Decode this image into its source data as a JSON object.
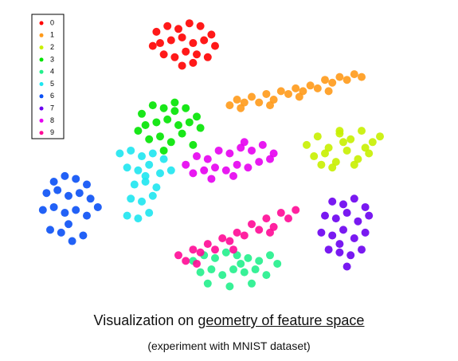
{
  "chart_data": {
    "type": "scatter",
    "title": [
      "Visualization on",
      "geometry of feature space"
    ],
    "subtitle": "(experiment with MNIST dataset)",
    "xlim": [
      0,
      100
    ],
    "ylim": [
      0,
      100
    ],
    "legend": "top-left",
    "series": [
      {
        "name": "0",
        "color": "#ff0000",
        "x": [
          34,
          37,
          40,
          43,
          46,
          49,
          35,
          38,
          41,
          44,
          47,
          50,
          36,
          39,
          42,
          45,
          48,
          33,
          41,
          44
        ],
        "y": [
          93,
          95,
          94,
          96,
          95,
          92,
          89,
          90,
          91,
          89,
          90,
          88,
          85,
          84,
          86,
          85,
          84,
          88,
          81,
          82
        ]
      },
      {
        "name": "1",
        "color": "#ff9a1a",
        "x": [
          54,
          56,
          58,
          60,
          62,
          64,
          66,
          68,
          70,
          72,
          74,
          76,
          78,
          80,
          82,
          84,
          86,
          88,
          90,
          57,
          65,
          73,
          81
        ],
        "y": [
          67,
          69,
          68,
          70,
          68,
          71,
          69,
          72,
          71,
          73,
          72,
          74,
          73,
          76,
          75,
          77,
          76,
          78,
          77,
          66,
          67,
          70,
          72
        ]
      },
      {
        "name": "2",
        "color": "#c8f000",
        "x": [
          75,
          78,
          81,
          84,
          87,
          90,
          93,
          95,
          77,
          80,
          83,
          86,
          89,
          92,
          79,
          82,
          85,
          88,
          91,
          84
        ],
        "y": [
          53,
          56,
          52,
          57,
          55,
          58,
          54,
          56,
          49,
          50,
          47,
          51,
          48,
          50,
          46,
          45,
          54,
          46,
          52,
          58
        ]
      },
      {
        "name": "3",
        "color": "#00e400",
        "x": [
          30,
          33,
          36,
          39,
          42,
          45,
          31,
          34,
          37,
          40,
          43,
          46,
          32,
          35,
          38,
          41,
          44,
          29,
          36,
          39
        ],
        "y": [
          64,
          67,
          66,
          68,
          66,
          63,
          60,
          61,
          62,
          60,
          61,
          59,
          55,
          56,
          54,
          57,
          53,
          58,
          51,
          65
        ]
      },
      {
        "name": "4",
        "color": "#22f08c",
        "x": [
          44,
          47,
          50,
          53,
          56,
          59,
          62,
          65,
          67,
          46,
          49,
          52,
          55,
          58,
          61,
          64,
          48,
          54,
          60,
          57
        ],
        "y": [
          12,
          14,
          13,
          15,
          14,
          13,
          12,
          14,
          11,
          8,
          9,
          7,
          9,
          8,
          9,
          7,
          4,
          3,
          4,
          11
        ]
      },
      {
        "name": "5",
        "color": "#1ee6f0",
        "x": [
          24,
          27,
          30,
          33,
          36,
          26,
          29,
          32,
          35,
          38,
          28,
          31,
          34,
          27,
          30,
          33,
          26,
          29,
          32,
          31
        ],
        "y": [
          50,
          51,
          49,
          50,
          48,
          45,
          44,
          46,
          43,
          44,
          39,
          40,
          38,
          34,
          33,
          35,
          28,
          27,
          29,
          42
        ]
      },
      {
        "name": "6",
        "color": "#0a50f5",
        "x": [
          6,
          9,
          12,
          15,
          4,
          7,
          10,
          13,
          16,
          3,
          6,
          9,
          12,
          15,
          18,
          5,
          8,
          11,
          14,
          10
        ],
        "y": [
          40,
          42,
          41,
          39,
          36,
          37,
          35,
          36,
          34,
          30,
          31,
          29,
          30,
          28,
          31,
          23,
          22,
          19,
          21,
          25
        ]
      },
      {
        "name": "7",
        "color": "#6a00f0",
        "x": [
          82,
          85,
          88,
          91,
          80,
          83,
          86,
          89,
          92,
          79,
          82,
          85,
          88,
          91,
          81,
          84,
          87,
          90,
          86,
          84
        ],
        "y": [
          33,
          32,
          34,
          31,
          28,
          27,
          29,
          26,
          28,
          22,
          21,
          23,
          20,
          22,
          16,
          15,
          14,
          16,
          10,
          18
        ]
      },
      {
        "name": "8",
        "color": "#e600f0",
        "x": [
          42,
          45,
          48,
          51,
          54,
          57,
          60,
          63,
          66,
          44,
          47,
          50,
          53,
          56,
          59,
          62,
          65,
          49,
          55,
          58
        ],
        "y": [
          46,
          49,
          48,
          51,
          50,
          52,
          51,
          53,
          50,
          43,
          44,
          45,
          44,
          46,
          45,
          47,
          48,
          41,
          42,
          54
        ]
      },
      {
        "name": "9",
        "color": "#ff0a96",
        "x": [
          40,
          42,
          44,
          46,
          48,
          50,
          52,
          54,
          56,
          58,
          60,
          62,
          64,
          66,
          68,
          70,
          72,
          45,
          55,
          65
        ],
        "y": [
          14,
          12,
          16,
          15,
          18,
          16,
          20,
          19,
          22,
          21,
          25,
          23,
          27,
          24,
          29,
          27,
          30,
          11,
          16,
          22
        ]
      }
    ]
  }
}
